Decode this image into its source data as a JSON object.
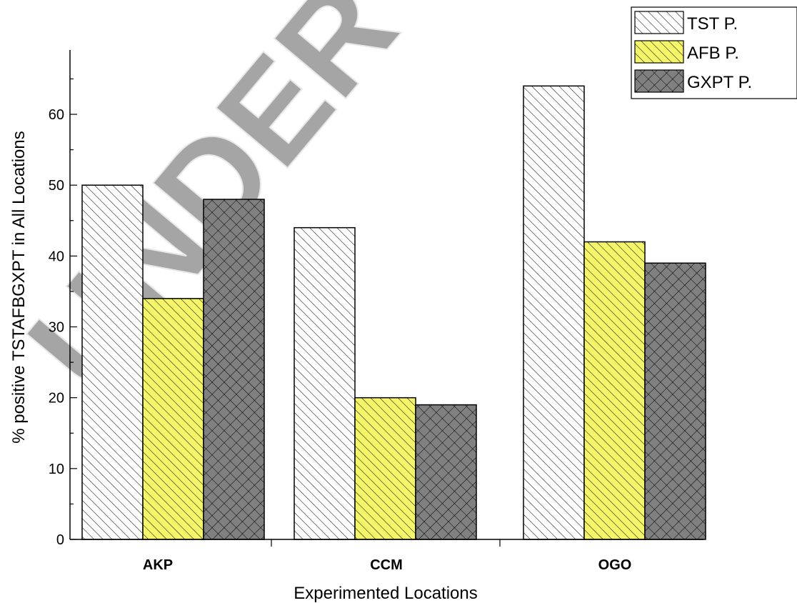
{
  "chart_data": {
    "type": "bar",
    "title": "",
    "xlabel": "Experimented Locations",
    "ylabel": "% positive TSTAFBGXPT in All Locations",
    "categories": [
      "AKP",
      "CCM",
      "OGO"
    ],
    "series": [
      {
        "name": "TST P.",
        "values": [
          50,
          44,
          64
        ],
        "color": "#ffffff",
        "pattern": "diagonal"
      },
      {
        "name": "AFB P.",
        "values": [
          34,
          20,
          42
        ],
        "color": "#f5f56a",
        "pattern": "diagonal"
      },
      {
        "name": "GXPT P.",
        "values": [
          48,
          19,
          39
        ],
        "color": "#808080",
        "pattern": "crosshatch"
      }
    ],
    "ylim": [
      0,
      70
    ],
    "yticks": [
      0,
      10,
      20,
      30,
      40,
      50,
      60
    ],
    "grid": false,
    "legend_position": "top-right"
  },
  "watermark": "UNDER PEER REVIEW"
}
